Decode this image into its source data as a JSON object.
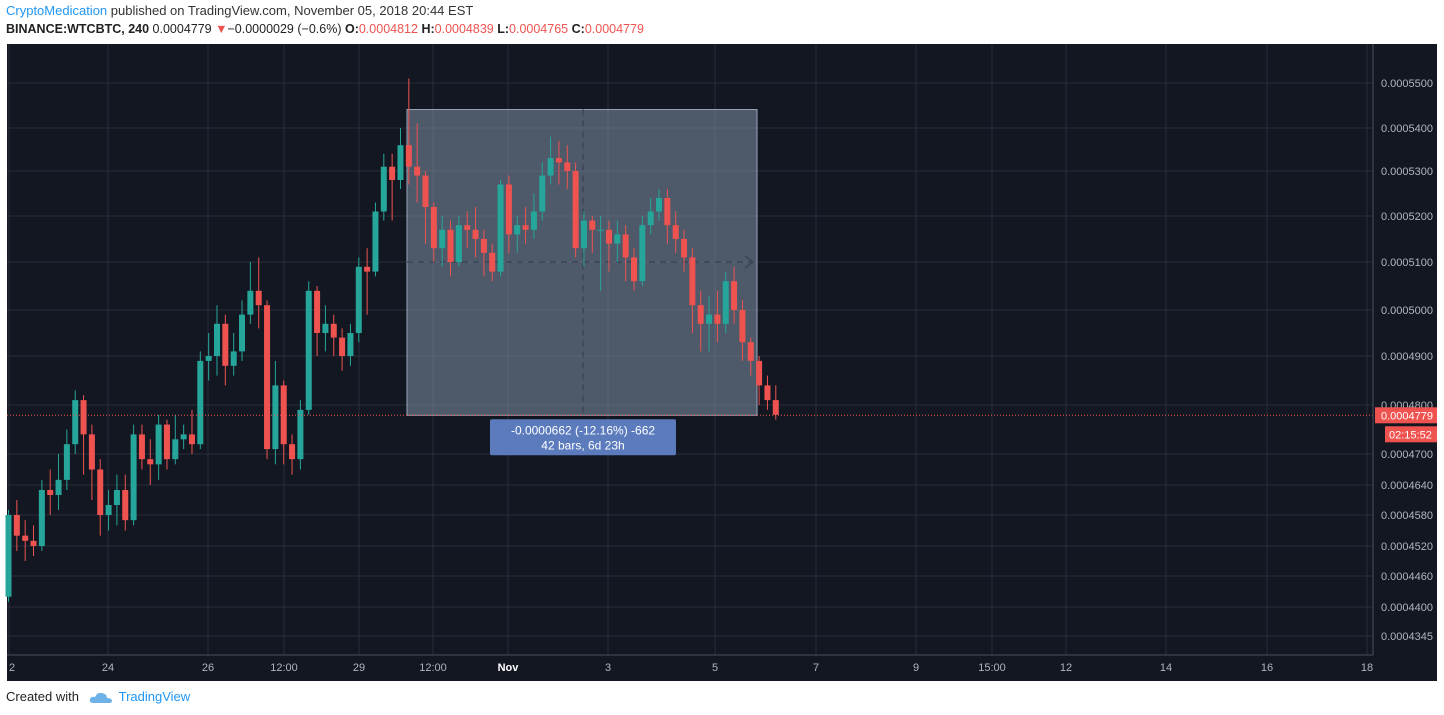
{
  "header": {
    "author": "CryptoMedication",
    "published": " published on TradingView.com, November 05, 2018 20:44 EST",
    "symbol": "BINANCE:WTCBTC, 240",
    "last": "0.0004779",
    "change": "−0.0000029 (−0.6%)",
    "open_label": "O:",
    "open": "0.0004812",
    "high_label": "H:",
    "high": "0.0004839",
    "low_label": "L:",
    "low": "0.0004765",
    "close_label": "C:",
    "close": "0.0004779"
  },
  "footer": {
    "created_with": "Created with",
    "brand": "TradingView"
  },
  "colors": {
    "background": "#131722",
    "grid": "#2a2e39",
    "up": "#26a69a",
    "down": "#ef5350",
    "measure_fill": "#7f8fa6",
    "measure_label": "#5b7bbd",
    "price_line": "#ef5350"
  },
  "chart_data": {
    "type": "candlestick",
    "x_ticks": [
      "2",
      "24",
      "26",
      "12:00",
      "29",
      "12:00",
      "Nov",
      "3",
      "5",
      "7",
      "9",
      "15:00",
      "12",
      "14",
      "16",
      "18"
    ],
    "y_ticks": [
      "0.0005500",
      "0.0005400",
      "0.0005300",
      "0.0005200",
      "0.0005100",
      "0.0005000",
      "0.0004900",
      "0.0004800",
      "0.0004700",
      "0.0004640",
      "0.0004580",
      "0.0004520",
      "0.0004460",
      "0.0004400",
      "0.0004345"
    ],
    "last_price_label": "0.0004779",
    "countdown_label": "02:15:52",
    "measure": {
      "line1": "-0.0000662 (-12.16%) -662",
      "line2": "42 bars, 6d 23h"
    },
    "candles": [
      [
        0.000442,
        0.000458,
        0.000459,
        0.000441
      ],
      [
        0.000458,
        0.000454,
        0.000461,
        0.000451
      ],
      [
        0.000454,
        0.000453,
        0.000457,
        0.000449
      ],
      [
        0.000453,
        0.000452,
        0.000456,
        0.00045
      ],
      [
        0.000452,
        0.000463,
        0.000465,
        0.000451
      ],
      [
        0.000463,
        0.000462,
        0.000467,
        0.000458
      ],
      [
        0.000462,
        0.000465,
        0.00047,
        0.000459
      ],
      [
        0.000465,
        0.000472,
        0.000475,
        0.000463
      ],
      [
        0.000472,
        0.000481,
        0.000483,
        0.00047
      ],
      [
        0.000481,
        0.000474,
        0.000482,
        0.000466
      ],
      [
        0.000474,
        0.000467,
        0.000476,
        0.000461
      ],
      [
        0.000467,
        0.000458,
        0.000469,
        0.000454
      ],
      [
        0.000458,
        0.00046,
        0.000463,
        0.000455
      ],
      [
        0.00046,
        0.000463,
        0.000466,
        0.000456
      ],
      [
        0.000463,
        0.000457,
        0.000466,
        0.000455
      ],
      [
        0.000457,
        0.000474,
        0.000476,
        0.000456
      ],
      [
        0.000474,
        0.000469,
        0.000476,
        0.000467
      ],
      [
        0.000469,
        0.000468,
        0.000473,
        0.000464
      ],
      [
        0.000468,
        0.000476,
        0.000478,
        0.000465
      ],
      [
        0.000476,
        0.000469,
        0.000477,
        0.000467
      ],
      [
        0.000469,
        0.000473,
        0.000478,
        0.000468
      ],
      [
        0.000473,
        0.000474,
        0.000476,
        0.000471
      ],
      [
        0.000474,
        0.000472,
        0.000479,
        0.00047
      ],
      [
        0.000472,
        0.000489,
        0.000491,
        0.000471
      ],
      [
        0.000489,
        0.00049,
        0.000495,
        0.000485
      ],
      [
        0.00049,
        0.000497,
        0.000501,
        0.000486
      ],
      [
        0.000497,
        0.000488,
        0.000499,
        0.000484
      ],
      [
        0.000488,
        0.000491,
        0.000495,
        0.000486
      ],
      [
        0.000491,
        0.000499,
        0.000502,
        0.000489
      ],
      [
        0.000499,
        0.000504,
        0.00051,
        0.000497
      ],
      [
        0.000504,
        0.000501,
        0.000511,
        0.000496
      ],
      [
        0.000501,
        0.000471,
        0.000502,
        0.000469
      ],
      [
        0.000471,
        0.000484,
        0.000489,
        0.000468
      ],
      [
        0.000484,
        0.000472,
        0.000485,
        0.000468
      ],
      [
        0.000472,
        0.000469,
        0.000474,
        0.000466
      ],
      [
        0.000469,
        0.000479,
        0.000481,
        0.000467
      ],
      [
        0.000479,
        0.000504,
        0.000506,
        0.000478
      ],
      [
        0.000504,
        0.000495,
        0.000505,
        0.00049
      ],
      [
        0.000495,
        0.000497,
        0.000501,
        0.000491
      ],
      [
        0.000497,
        0.000494,
        0.000499,
        0.00049
      ],
      [
        0.000494,
        0.00049,
        0.000496,
        0.000487
      ],
      [
        0.00049,
        0.000495,
        0.000497,
        0.000488
      ],
      [
        0.000495,
        0.000509,
        0.000511,
        0.000493
      ],
      [
        0.000509,
        0.000508,
        0.000513,
        0.000499
      ],
      [
        0.000508,
        0.000521,
        0.000523,
        0.000507
      ],
      [
        0.000521,
        0.000531,
        0.000534,
        0.000519
      ],
      [
        0.000531,
        0.000528,
        0.000534,
        0.000519
      ],
      [
        0.000528,
        0.000536,
        0.00054,
        0.000526
      ],
      [
        0.000536,
        0.000531,
        0.000551,
        0.000527
      ],
      [
        0.000531,
        0.000529,
        0.000541,
        0.000523
      ],
      [
        0.000529,
        0.000522,
        0.00053,
        0.000514
      ],
      [
        0.000522,
        0.000513,
        0.000523,
        0.00051
      ],
      [
        0.000513,
        0.000517,
        0.00052,
        0.000509
      ],
      [
        0.000517,
        0.00051,
        0.000519,
        0.000507
      ],
      [
        0.00051,
        0.000518,
        0.00052,
        0.000509
      ],
      [
        0.000518,
        0.000517,
        0.000521,
        0.000513
      ],
      [
        0.000517,
        0.000515,
        0.000522,
        0.000511
      ],
      [
        0.000515,
        0.000512,
        0.000517,
        0.000507
      ],
      [
        0.000512,
        0.000508,
        0.000514,
        0.000506
      ],
      [
        0.000508,
        0.000527,
        0.000528,
        0.000507
      ],
      [
        0.000527,
        0.000516,
        0.000529,
        0.000512
      ],
      [
        0.000516,
        0.000518,
        0.00052,
        0.000512
      ],
      [
        0.000518,
        0.000517,
        0.000522,
        0.000514
      ],
      [
        0.000517,
        0.000521,
        0.000525,
        0.000515
      ],
      [
        0.000521,
        0.000529,
        0.000532,
        0.000519
      ],
      [
        0.000529,
        0.000533,
        0.000538,
        0.000527
      ],
      [
        0.000533,
        0.000532,
        0.000537,
        0.000527
      ],
      [
        0.000532,
        0.00053,
        0.000536,
        0.000526
      ],
      [
        0.00053,
        0.000513,
        0.000532,
        0.000511
      ],
      [
        0.000513,
        0.000519,
        0.000521,
        0.000509
      ],
      [
        0.000519,
        0.000517,
        0.00052,
        0.000512
      ],
      [
        0.000517,
        0.000517,
        0.00052,
        0.000504
      ],
      [
        0.000517,
        0.000514,
        0.000519,
        0.000508
      ],
      [
        0.000514,
        0.000516,
        0.000519,
        0.00051
      ],
      [
        0.000516,
        0.000511,
        0.000518,
        0.000506
      ],
      [
        0.000511,
        0.000506,
        0.000513,
        0.000504
      ],
      [
        0.000506,
        0.000518,
        0.00052,
        0.000505
      ],
      [
        0.000518,
        0.000521,
        0.000524,
        0.000516
      ],
      [
        0.000521,
        0.000524,
        0.000526,
        0.000519
      ],
      [
        0.000524,
        0.000518,
        0.000526,
        0.000514
      ],
      [
        0.000518,
        0.000515,
        0.000521,
        0.000512
      ],
      [
        0.000515,
        0.000511,
        0.000517,
        0.000508
      ],
      [
        0.000511,
        0.000501,
        0.000513,
        0.000495
      ],
      [
        0.000501,
        0.000497,
        0.000504,
        0.000491
      ],
      [
        0.000497,
        0.000499,
        0.000503,
        0.000491
      ],
      [
        0.000499,
        0.000497,
        0.000504,
        0.000493
      ],
      [
        0.000497,
        0.000506,
        0.000508,
        0.000495
      ],
      [
        0.000506,
        0.0005,
        0.000509,
        0.000497
      ],
      [
        0.0005,
        0.000493,
        0.000502,
        0.000489
      ],
      [
        0.000493,
        0.000489,
        0.000494,
        0.000486
      ],
      [
        0.000489,
        0.000484,
        0.00049,
        0.00048
      ],
      [
        0.000484,
        0.000481,
        0.000486,
        0.000479
      ],
      [
        0.000481,
        0.000478,
        0.000484,
        0.000477
      ]
    ]
  }
}
